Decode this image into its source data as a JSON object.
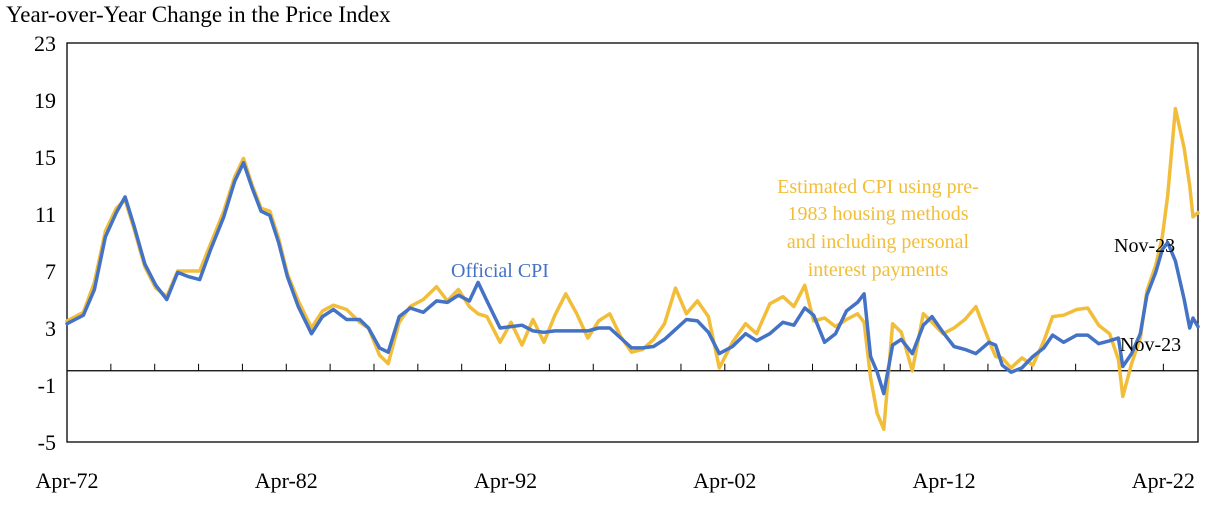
{
  "chart_data": {
    "type": "line",
    "title": "Year-over-Year Change in the Price Index",
    "xlabel": "",
    "ylabel": "",
    "x_range": [
      1972.25,
      2023.83
    ],
    "ylim": [
      -5,
      23
    ],
    "y_ticks": [
      -5,
      -1,
      3,
      7,
      11,
      15,
      19,
      23
    ],
    "x_ticks": [
      {
        "label": "Apr-72",
        "x": 1972.25
      },
      {
        "label": "Apr-82",
        "x": 1982.25
      },
      {
        "label": "Apr-92",
        "x": 1992.25
      },
      {
        "label": "Apr-02",
        "x": 2002.25
      },
      {
        "label": "Apr-12",
        "x": 2012.25
      },
      {
        "label": "Apr-22",
        "x": 2022.25
      }
    ],
    "minor_tick_step_years": 2,
    "series": [
      {
        "name": "Official CPI",
        "color": "#4472C4",
        "points": [
          [
            1972.25,
            3.3
          ],
          [
            1973.0,
            3.9
          ],
          [
            1973.5,
            5.7
          ],
          [
            1974.0,
            9.4
          ],
          [
            1974.5,
            11.1
          ],
          [
            1974.9,
            12.2
          ],
          [
            1975.3,
            10.2
          ],
          [
            1975.8,
            7.5
          ],
          [
            1976.3,
            6.0
          ],
          [
            1976.8,
            5.0
          ],
          [
            1977.3,
            6.9
          ],
          [
            1977.8,
            6.6
          ],
          [
            1978.3,
            6.4
          ],
          [
            1978.8,
            8.5
          ],
          [
            1979.4,
            10.8
          ],
          [
            1979.9,
            13.3
          ],
          [
            1980.3,
            14.6
          ],
          [
            1980.7,
            12.8
          ],
          [
            1981.1,
            11.2
          ],
          [
            1981.5,
            10.9
          ],
          [
            1981.9,
            9.0
          ],
          [
            1982.3,
            6.6
          ],
          [
            1982.8,
            4.5
          ],
          [
            1983.4,
            2.6
          ],
          [
            1983.9,
            3.8
          ],
          [
            1984.4,
            4.3
          ],
          [
            1985.0,
            3.6
          ],
          [
            1985.6,
            3.6
          ],
          [
            1986.0,
            3.0
          ],
          [
            1986.5,
            1.6
          ],
          [
            1986.9,
            1.3
          ],
          [
            1987.4,
            3.8
          ],
          [
            1987.9,
            4.4
          ],
          [
            1988.5,
            4.1
          ],
          [
            1989.1,
            4.9
          ],
          [
            1989.6,
            4.8
          ],
          [
            1990.1,
            5.3
          ],
          [
            1990.6,
            4.9
          ],
          [
            1991.0,
            6.2
          ],
          [
            1991.4,
            4.9
          ],
          [
            1992.0,
            3.0
          ],
          [
            1992.5,
            3.1
          ],
          [
            1993.0,
            3.2
          ],
          [
            1993.5,
            2.8
          ],
          [
            1994.0,
            2.7
          ],
          [
            1994.5,
            2.8
          ],
          [
            1995.0,
            2.8
          ],
          [
            1995.5,
            2.8
          ],
          [
            1996.0,
            2.8
          ],
          [
            1996.5,
            3.0
          ],
          [
            1997.0,
            3.0
          ],
          [
            1997.5,
            2.3
          ],
          [
            1998.0,
            1.6
          ],
          [
            1998.5,
            1.6
          ],
          [
            1999.0,
            1.7
          ],
          [
            1999.5,
            2.2
          ],
          [
            2000.0,
            2.9
          ],
          [
            2000.5,
            3.6
          ],
          [
            2001.0,
            3.5
          ],
          [
            2001.5,
            2.7
          ],
          [
            2002.0,
            1.2
          ],
          [
            2002.6,
            1.7
          ],
          [
            2003.2,
            2.6
          ],
          [
            2003.7,
            2.1
          ],
          [
            2004.3,
            2.6
          ],
          [
            2004.9,
            3.4
          ],
          [
            2005.4,
            3.2
          ],
          [
            2005.9,
            4.4
          ],
          [
            2006.3,
            3.9
          ],
          [
            2006.8,
            2.0
          ],
          [
            2007.3,
            2.6
          ],
          [
            2007.8,
            4.2
          ],
          [
            2008.3,
            4.8
          ],
          [
            2008.6,
            5.4
          ],
          [
            2008.9,
            1.0
          ],
          [
            2009.2,
            -0.1
          ],
          [
            2009.5,
            -1.6
          ],
          [
            2009.9,
            1.8
          ],
          [
            2010.3,
            2.2
          ],
          [
            2010.8,
            1.2
          ],
          [
            2011.3,
            3.2
          ],
          [
            2011.7,
            3.8
          ],
          [
            2012.2,
            2.7
          ],
          [
            2012.7,
            1.7
          ],
          [
            2013.2,
            1.5
          ],
          [
            2013.7,
            1.2
          ],
          [
            2014.3,
            2.0
          ],
          [
            2014.6,
            1.8
          ],
          [
            2014.9,
            0.4
          ],
          [
            2015.3,
            -0.1
          ],
          [
            2015.8,
            0.2
          ],
          [
            2016.3,
            1.0
          ],
          [
            2016.8,
            1.6
          ],
          [
            2017.2,
            2.5
          ],
          [
            2017.7,
            2.0
          ],
          [
            2018.3,
            2.5
          ],
          [
            2018.8,
            2.5
          ],
          [
            2019.3,
            1.9
          ],
          [
            2019.8,
            2.1
          ],
          [
            2020.2,
            2.3
          ],
          [
            2020.4,
            0.3
          ],
          [
            2020.8,
            1.2
          ],
          [
            2021.2,
            2.6
          ],
          [
            2021.5,
            5.3
          ],
          [
            2021.9,
            6.9
          ],
          [
            2022.2,
            8.5
          ],
          [
            2022.45,
            9.0
          ],
          [
            2022.8,
            7.7
          ],
          [
            2023.2,
            5.0
          ],
          [
            2023.45,
            3.0
          ],
          [
            2023.6,
            3.7
          ],
          [
            2023.83,
            3.1
          ]
        ]
      },
      {
        "name": "Estimated CPI using pre-1983 housing methods and including personal interest payments",
        "color": "#F2BE3A",
        "points": [
          [
            1972.25,
            3.5
          ],
          [
            1973.0,
            4.1
          ],
          [
            1973.5,
            6.2
          ],
          [
            1974.0,
            9.8
          ],
          [
            1974.5,
            11.4
          ],
          [
            1974.9,
            12.0
          ],
          [
            1975.3,
            10.0
          ],
          [
            1975.8,
            7.3
          ],
          [
            1976.3,
            5.8
          ],
          [
            1976.8,
            5.2
          ],
          [
            1977.3,
            7.0
          ],
          [
            1977.8,
            7.0
          ],
          [
            1978.3,
            7.0
          ],
          [
            1978.8,
            8.9
          ],
          [
            1979.4,
            11.2
          ],
          [
            1979.9,
            13.6
          ],
          [
            1980.3,
            14.9
          ],
          [
            1980.7,
            13.0
          ],
          [
            1981.1,
            11.4
          ],
          [
            1981.5,
            11.2
          ],
          [
            1981.9,
            9.3
          ],
          [
            1982.3,
            6.8
          ],
          [
            1982.8,
            4.9
          ],
          [
            1983.4,
            3.0
          ],
          [
            1983.9,
            4.2
          ],
          [
            1984.4,
            4.6
          ],
          [
            1985.0,
            4.3
          ],
          [
            1985.6,
            3.4
          ],
          [
            1986.0,
            3.0
          ],
          [
            1986.5,
            1.1
          ],
          [
            1986.9,
            0.5
          ],
          [
            1987.4,
            3.4
          ],
          [
            1987.9,
            4.5
          ],
          [
            1988.5,
            5.0
          ],
          [
            1989.1,
            5.9
          ],
          [
            1989.6,
            4.9
          ],
          [
            1990.1,
            5.7
          ],
          [
            1990.6,
            4.5
          ],
          [
            1991.0,
            4.0
          ],
          [
            1991.4,
            3.8
          ],
          [
            1992.0,
            2.0
          ],
          [
            1992.5,
            3.4
          ],
          [
            1993.0,
            1.8
          ],
          [
            1993.5,
            3.6
          ],
          [
            1994.0,
            2.0
          ],
          [
            1994.5,
            3.9
          ],
          [
            1995.0,
            5.4
          ],
          [
            1995.5,
            4.0
          ],
          [
            1996.0,
            2.3
          ],
          [
            1996.5,
            3.5
          ],
          [
            1997.0,
            4.0
          ],
          [
            1997.5,
            2.4
          ],
          [
            1998.0,
            1.3
          ],
          [
            1998.5,
            1.5
          ],
          [
            1999.0,
            2.2
          ],
          [
            1999.5,
            3.3
          ],
          [
            2000.0,
            5.8
          ],
          [
            2000.5,
            4.0
          ],
          [
            2001.0,
            4.9
          ],
          [
            2001.5,
            3.8
          ],
          [
            2002.0,
            0.2
          ],
          [
            2002.6,
            2.0
          ],
          [
            2003.2,
            3.3
          ],
          [
            2003.7,
            2.6
          ],
          [
            2004.3,
            4.7
          ],
          [
            2004.9,
            5.2
          ],
          [
            2005.4,
            4.5
          ],
          [
            2005.9,
            6.0
          ],
          [
            2006.3,
            3.5
          ],
          [
            2006.8,
            3.7
          ],
          [
            2007.3,
            3.1
          ],
          [
            2007.8,
            3.6
          ],
          [
            2008.3,
            4.0
          ],
          [
            2008.6,
            3.4
          ],
          [
            2008.9,
            -0.5
          ],
          [
            2009.2,
            -3.0
          ],
          [
            2009.5,
            -4.1
          ],
          [
            2009.9,
            3.3
          ],
          [
            2010.3,
            2.7
          ],
          [
            2010.8,
            0.0
          ],
          [
            2011.3,
            4.0
          ],
          [
            2011.7,
            3.4
          ],
          [
            2012.2,
            2.6
          ],
          [
            2012.7,
            3.0
          ],
          [
            2013.2,
            3.6
          ],
          [
            2013.7,
            4.5
          ],
          [
            2014.3,
            2.1
          ],
          [
            2014.6,
            1.0
          ],
          [
            2014.9,
            0.9
          ],
          [
            2015.3,
            0.2
          ],
          [
            2015.8,
            0.9
          ],
          [
            2016.3,
            0.4
          ],
          [
            2016.8,
            2.1
          ],
          [
            2017.2,
            3.8
          ],
          [
            2017.7,
            3.9
          ],
          [
            2018.3,
            4.3
          ],
          [
            2018.8,
            4.4
          ],
          [
            2019.3,
            3.2
          ],
          [
            2019.8,
            2.6
          ],
          [
            2020.2,
            0.8
          ],
          [
            2020.4,
            -1.8
          ],
          [
            2020.8,
            0.5
          ],
          [
            2021.2,
            2.3
          ],
          [
            2021.5,
            5.6
          ],
          [
            2021.9,
            7.4
          ],
          [
            2022.2,
            9.4
          ],
          [
            2022.45,
            12.3
          ],
          [
            2022.8,
            18.4
          ],
          [
            2023.2,
            15.6
          ],
          [
            2023.45,
            13.0
          ],
          [
            2023.6,
            10.8
          ],
          [
            2023.83,
            11.1
          ]
        ]
      }
    ],
    "annotations": [
      {
        "text": "Official CPI",
        "series": 0
      },
      {
        "lines": [
          "Estimated CPI using pre-",
          "1983 housing methods",
          "and including  personal",
          "interest payments"
        ],
        "series": 1
      },
      {
        "text": "Nov-23",
        "series": 1
      },
      {
        "text": "Nov-23",
        "series": 0
      }
    ]
  }
}
